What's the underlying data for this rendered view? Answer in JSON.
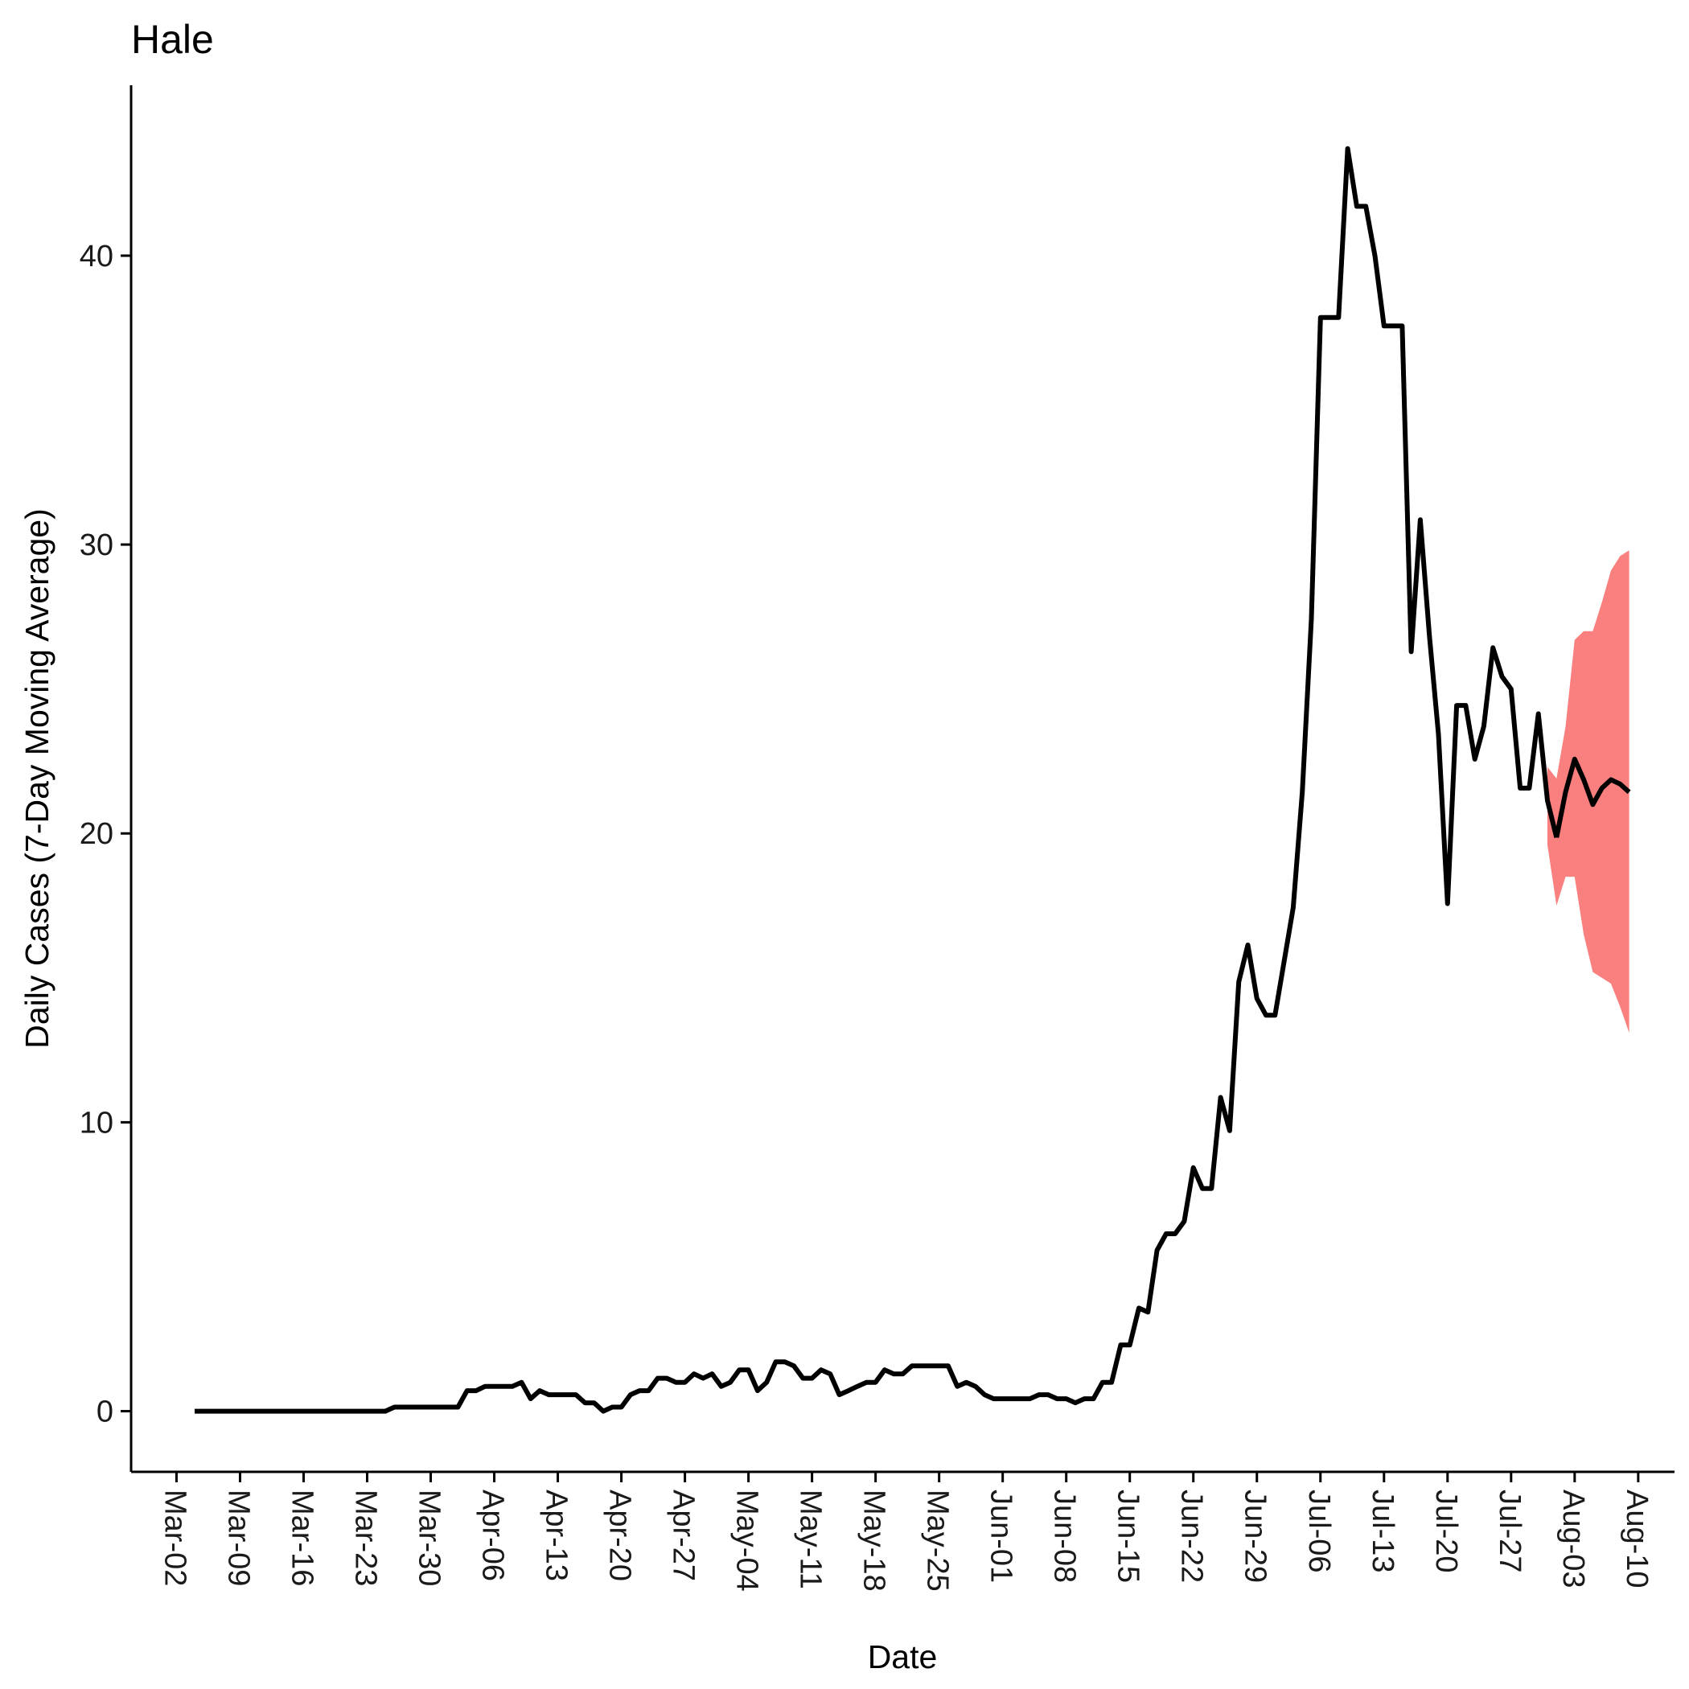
{
  "chart_data": {
    "type": "line",
    "title": "Hale",
    "xlabel": "Date",
    "ylabel": "Daily Cases (7-Day Moving Average)",
    "x_ticks": [
      "Mar-02",
      "Mar-09",
      "Mar-16",
      "Mar-23",
      "Mar-30",
      "Apr-06",
      "Apr-13",
      "Apr-20",
      "Apr-27",
      "May-04",
      "May-11",
      "May-18",
      "May-25",
      "Jun-01",
      "Jun-08",
      "Jun-15",
      "Jun-22",
      "Jun-29",
      "Jul-06",
      "Jul-13",
      "Jul-20",
      "Jul-27",
      "Aug-03",
      "Aug-10"
    ],
    "y_ticks": [
      "0",
      "10",
      "20",
      "30",
      "40"
    ],
    "ylim": [
      -2.1,
      45.9
    ],
    "xlim": [
      "2020-02-26",
      "2020-08-14"
    ],
    "grid": false,
    "series": [
      {
        "role": "observed",
        "color": "#000000",
        "points": [
          [
            "2020-03-04",
            0
          ],
          [
            "2020-03-10",
            0
          ],
          [
            "2020-03-16",
            0
          ],
          [
            "2020-03-22",
            0
          ],
          [
            "2020-03-25",
            0
          ],
          [
            "2020-03-26",
            0.14
          ],
          [
            "2020-03-28",
            0.14
          ],
          [
            "2020-04-01",
            0.14
          ],
          [
            "2020-04-02",
            0.14
          ],
          [
            "2020-04-03",
            0.71
          ],
          [
            "2020-04-04",
            0.71
          ],
          [
            "2020-04-05",
            0.86
          ],
          [
            "2020-04-08",
            0.86
          ],
          [
            "2020-04-09",
            1.0
          ],
          [
            "2020-04-10",
            0.43
          ],
          [
            "2020-04-11",
            0.71
          ],
          [
            "2020-04-12",
            0.57
          ],
          [
            "2020-04-15",
            0.57
          ],
          [
            "2020-04-16",
            0.29
          ],
          [
            "2020-04-17",
            0.29
          ],
          [
            "2020-04-18",
            0
          ],
          [
            "2020-04-19",
            0.14
          ],
          [
            "2020-04-20",
            0.14
          ],
          [
            "2020-04-21",
            0.57
          ],
          [
            "2020-04-22",
            0.71
          ],
          [
            "2020-04-23",
            0.71
          ],
          [
            "2020-04-24",
            1.14
          ],
          [
            "2020-04-25",
            1.14
          ],
          [
            "2020-04-26",
            1.0
          ],
          [
            "2020-04-27",
            1.0
          ],
          [
            "2020-04-28",
            1.29
          ],
          [
            "2020-04-29",
            1.14
          ],
          [
            "2020-04-30",
            1.29
          ],
          [
            "2020-05-01",
            0.86
          ],
          [
            "2020-05-02",
            1.0
          ],
          [
            "2020-05-03",
            1.43
          ],
          [
            "2020-05-04",
            1.43
          ],
          [
            "2020-05-05",
            0.71
          ],
          [
            "2020-05-06",
            1.0
          ],
          [
            "2020-05-07",
            1.71
          ],
          [
            "2020-05-08",
            1.71
          ],
          [
            "2020-05-09",
            1.57
          ],
          [
            "2020-05-10",
            1.14
          ],
          [
            "2020-05-11",
            1.14
          ],
          [
            "2020-05-12",
            1.43
          ],
          [
            "2020-05-13",
            1.29
          ],
          [
            "2020-05-14",
            0.57
          ],
          [
            "2020-05-15",
            0.71
          ],
          [
            "2020-05-16",
            0.86
          ],
          [
            "2020-05-17",
            1.0
          ],
          [
            "2020-05-18",
            1.0
          ],
          [
            "2020-05-19",
            1.43
          ],
          [
            "2020-05-20",
            1.29
          ],
          [
            "2020-05-21",
            1.29
          ],
          [
            "2020-05-22",
            1.57
          ],
          [
            "2020-05-23",
            1.57
          ],
          [
            "2020-05-26",
            1.57
          ],
          [
            "2020-05-27",
            0.86
          ],
          [
            "2020-05-28",
            1.0
          ],
          [
            "2020-05-29",
            0.86
          ],
          [
            "2020-05-30",
            0.57
          ],
          [
            "2020-05-31",
            0.43
          ],
          [
            "2020-06-01",
            0.43
          ],
          [
            "2020-06-04",
            0.43
          ],
          [
            "2020-06-05",
            0.57
          ],
          [
            "2020-06-06",
            0.57
          ],
          [
            "2020-06-07",
            0.43
          ],
          [
            "2020-06-08",
            0.43
          ],
          [
            "2020-06-09",
            0.29
          ],
          [
            "2020-06-10",
            0.43
          ],
          [
            "2020-06-11",
            0.43
          ],
          [
            "2020-06-12",
            1.0
          ],
          [
            "2020-06-13",
            1.0
          ],
          [
            "2020-06-14",
            2.29
          ],
          [
            "2020-06-15",
            2.29
          ],
          [
            "2020-06-16",
            3.57
          ],
          [
            "2020-06-17",
            3.43
          ],
          [
            "2020-06-18",
            5.57
          ],
          [
            "2020-06-19",
            6.14
          ],
          [
            "2020-06-20",
            6.14
          ],
          [
            "2020-06-21",
            6.57
          ],
          [
            "2020-06-22",
            8.43
          ],
          [
            "2020-06-23",
            7.71
          ],
          [
            "2020-06-24",
            7.71
          ],
          [
            "2020-06-25",
            10.86
          ],
          [
            "2020-06-26",
            9.71
          ],
          [
            "2020-06-27",
            14.86
          ],
          [
            "2020-06-28",
            16.14
          ],
          [
            "2020-06-29",
            14.29
          ],
          [
            "2020-06-30",
            13.71
          ],
          [
            "2020-07-01",
            13.71
          ],
          [
            "2020-07-03",
            17.43
          ],
          [
            "2020-07-04",
            21.43
          ],
          [
            "2020-07-05",
            27.43
          ],
          [
            "2020-07-06",
            37.86
          ],
          [
            "2020-07-07",
            37.86
          ],
          [
            "2020-07-08",
            37.86
          ],
          [
            "2020-07-09",
            43.71
          ],
          [
            "2020-07-10",
            41.71
          ],
          [
            "2020-07-11",
            41.71
          ],
          [
            "2020-07-12",
            40.0
          ],
          [
            "2020-07-13",
            37.57
          ],
          [
            "2020-07-14",
            37.57
          ],
          [
            "2020-07-15",
            37.57
          ],
          [
            "2020-07-16",
            26.29
          ],
          [
            "2020-07-17",
            30.86
          ],
          [
            "2020-07-18",
            26.86
          ],
          [
            "2020-07-19",
            23.43
          ],
          [
            "2020-07-20",
            17.57
          ],
          [
            "2020-07-21",
            24.43
          ],
          [
            "2020-07-22",
            24.43
          ],
          [
            "2020-07-23",
            22.57
          ],
          [
            "2020-07-24",
            23.71
          ],
          [
            "2020-07-25",
            26.43
          ],
          [
            "2020-07-26",
            25.43
          ],
          [
            "2020-07-27",
            25.0
          ],
          [
            "2020-07-28",
            21.57
          ],
          [
            "2020-07-29",
            21.57
          ],
          [
            "2020-07-30",
            24.14
          ],
          [
            "2020-07-31",
            21.14
          ],
          [
            "2020-08-01",
            19.86
          ]
        ]
      },
      {
        "role": "forecast",
        "color": "#000000",
        "points": [
          [
            "2020-08-01",
            19.86
          ],
          [
            "2020-08-02",
            21.43
          ],
          [
            "2020-08-03",
            22.57
          ],
          [
            "2020-08-04",
            21.86
          ],
          [
            "2020-08-05",
            21.0
          ],
          [
            "2020-08-06",
            21.57
          ],
          [
            "2020-08-07",
            21.86
          ],
          [
            "2020-08-08",
            21.71
          ],
          [
            "2020-08-09",
            21.43
          ]
        ]
      }
    ],
    "bands": [
      {
        "role": "forecast-interval",
        "color": "#fa7f7f",
        "x": [
          "2020-07-31",
          "2020-08-01",
          "2020-08-02",
          "2020-08-03",
          "2020-08-04",
          "2020-08-05",
          "2020-08-06",
          "2020-08-07",
          "2020-08-08",
          "2020-08-09"
        ],
        "upper": [
          22.3,
          21.9,
          23.7,
          26.7,
          27.0,
          27.0,
          28.0,
          29.1,
          29.6,
          29.8
        ],
        "lower": [
          19.6,
          17.5,
          18.5,
          18.5,
          16.5,
          15.2,
          15.0,
          14.8,
          14.0,
          13.1
        ]
      }
    ]
  }
}
